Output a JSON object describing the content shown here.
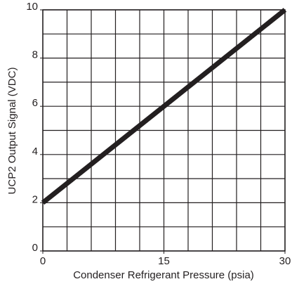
{
  "chart_data": {
    "type": "line",
    "xlabel": "Condenser Refrigerant Pressure (psia)",
    "ylabel": "UCP2 Output Signal (VDC)",
    "xlim": [
      0,
      30
    ],
    "ylim": [
      0,
      10
    ],
    "xticks": [
      0,
      15,
      30
    ],
    "yticks": [
      0,
      2,
      4,
      6,
      8,
      10
    ],
    "xgrid": [
      0,
      3,
      6,
      9,
      12,
      15,
      18,
      21,
      24,
      27,
      30
    ],
    "ygrid": [
      0,
      1,
      2,
      3,
      4,
      5,
      6,
      7,
      8,
      9,
      10
    ],
    "series": [
      {
        "color": "#231f20",
        "x": [
          0,
          30
        ],
        "values": [
          2,
          10
        ]
      }
    ]
  }
}
